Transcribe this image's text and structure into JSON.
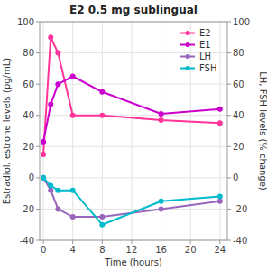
{
  "chart_data": {
    "type": "line",
    "title": "E2 0.5 mg sublingual",
    "xlabel": "Time (hours)",
    "ylabel": "Estradiol, estrone levels (pg/mL)",
    "y2label": "LH, FSH levels (% change)",
    "x": [
      0,
      1,
      2,
      4,
      8,
      16,
      24
    ],
    "series": [
      {
        "name": "E2",
        "color": "#ff3399",
        "values": [
          15,
          90,
          80,
          40,
          40,
          37,
          35
        ],
        "marker": "circle"
      },
      {
        "name": "E1",
        "color": "#cc00cc",
        "values": [
          23,
          47,
          60,
          65,
          55,
          41,
          44
        ],
        "marker": "circle"
      },
      {
        "name": "LH",
        "color": "#9966bb",
        "values": [
          0,
          -8,
          -20,
          -25,
          -25,
          -20,
          -15
        ],
        "axis": "y2",
        "marker": "circle"
      },
      {
        "name": "FSH",
        "color": "#00bbcc",
        "values": [
          0,
          -5,
          -8,
          -8,
          -30,
          -15,
          -12
        ],
        "axis": "y2",
        "marker": "circle"
      }
    ],
    "xlim": [
      -0.5,
      25
    ],
    "xticks": [
      0,
      4,
      8,
      12,
      16,
      20,
      24
    ],
    "ylim": [
      -40,
      100
    ],
    "yticks": [
      -40,
      -20,
      0,
      20,
      40,
      60,
      80,
      100
    ],
    "y2lim": [
      -40,
      100
    ],
    "y2ticks": [
      -40,
      -20,
      0,
      20,
      40,
      60,
      80,
      100
    ],
    "grid": true,
    "legend": "upper right"
  }
}
